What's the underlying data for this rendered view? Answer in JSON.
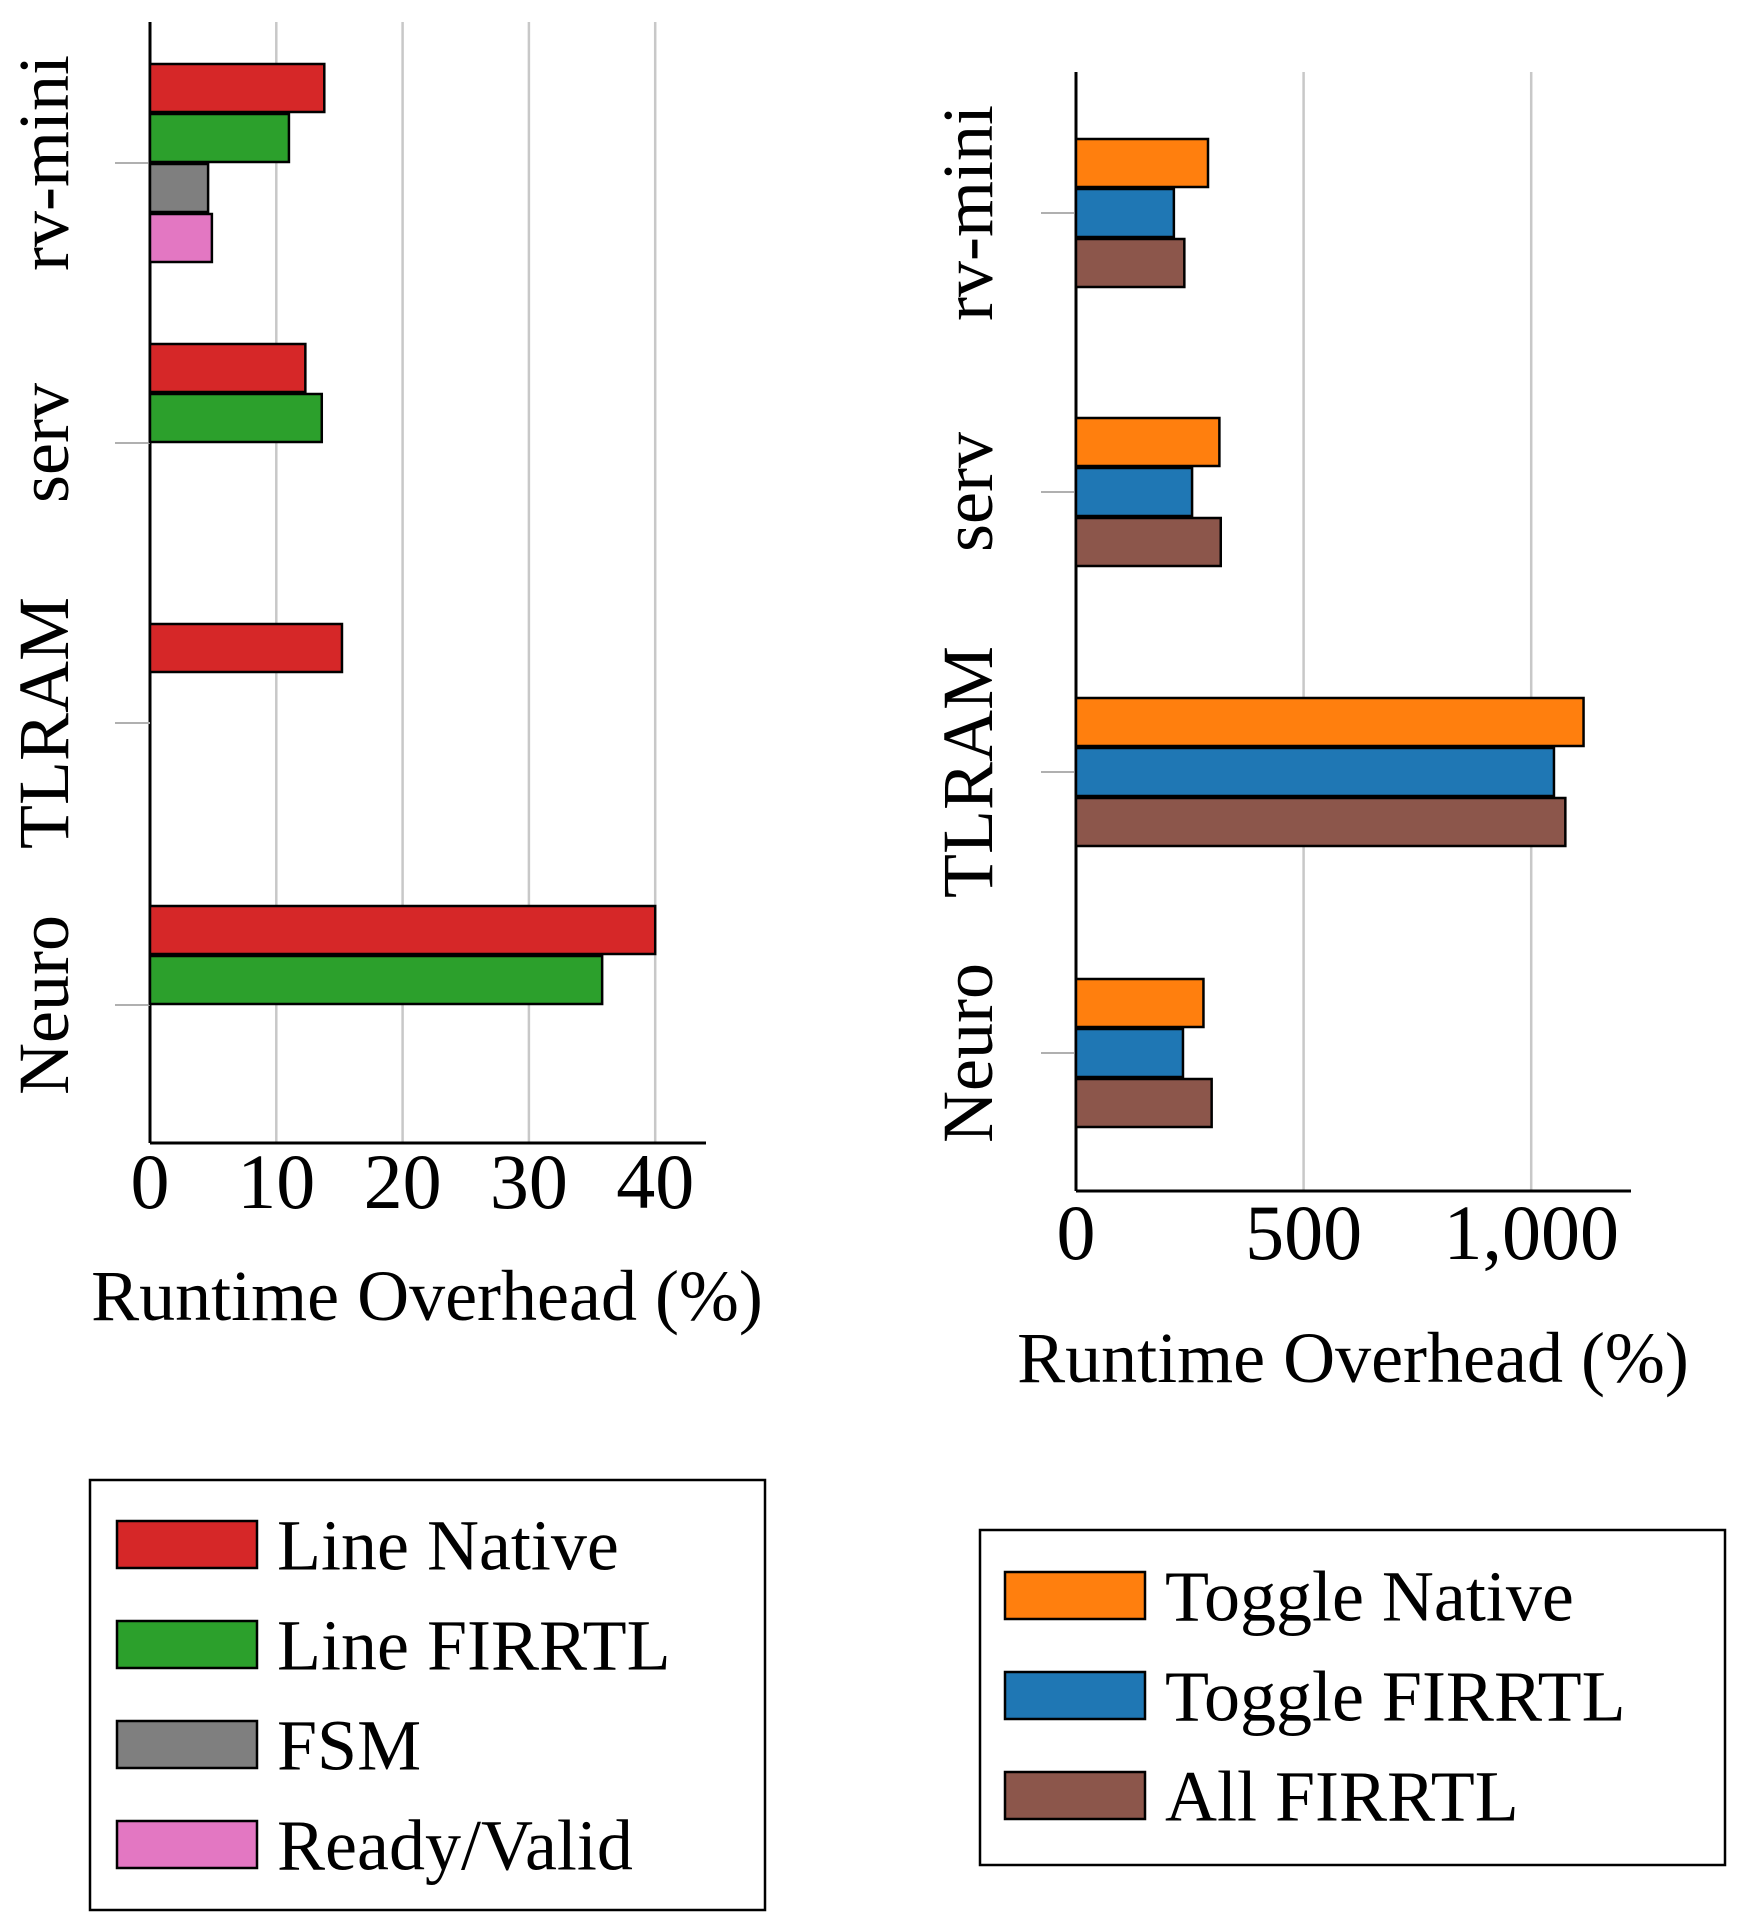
{
  "chart_data": [
    {
      "type": "bar",
      "orientation": "horizontal",
      "categories": [
        "rv-mini",
        "serv",
        "TLRAM",
        "Neuro"
      ],
      "xlabel": "Runtime Overhead (%)",
      "xlim": [
        0,
        44
      ],
      "xticks": [
        {
          "value": 0,
          "label": "0"
        },
        {
          "value": 10,
          "label": "10"
        },
        {
          "value": 20,
          "label": "20"
        },
        {
          "value": 30,
          "label": "30"
        },
        {
          "value": 40,
          "label": "40"
        }
      ],
      "grid": "vertical",
      "legend_position": "bottom",
      "series": [
        {
          "name": "Line Native",
          "color": "#d62728",
          "values": [
            13.8,
            12.3,
            15.2,
            40.0
          ]
        },
        {
          "name": "Line FIRRTL",
          "color": "#2ca02c",
          "values": [
            11.0,
            13.6,
            null,
            35.8
          ]
        },
        {
          "name": "FSM",
          "color": "#7f7f7f",
          "values": [
            4.6,
            null,
            null,
            null
          ]
        },
        {
          "name": "Ready/Valid",
          "color": "#e377c2",
          "values": [
            4.9,
            null,
            null,
            null
          ]
        }
      ]
    },
    {
      "type": "bar",
      "orientation": "horizontal",
      "categories": [
        "rv-mini",
        "serv",
        "TLRAM",
        "Neuro"
      ],
      "xlabel": "Runtime Overhead (%)",
      "xlim": [
        0,
        1220
      ],
      "xticks": [
        {
          "value": 0,
          "label": "0"
        },
        {
          "value": 500,
          "label": "500"
        },
        {
          "value": 1000,
          "label": "1,000"
        }
      ],
      "grid": "vertical",
      "legend_position": "bottom",
      "series": [
        {
          "name": "Toggle Native",
          "color": "#ff7f0e",
          "values": [
            290,
            315,
            1115,
            280
          ]
        },
        {
          "name": "Toggle FIRRTL",
          "color": "#1f77b4",
          "values": [
            215,
            255,
            1050,
            235
          ]
        },
        {
          "name": "All FIRRTL",
          "color": "#8c564b",
          "values": [
            238,
            318,
            1075,
            298
          ]
        }
      ]
    }
  ]
}
